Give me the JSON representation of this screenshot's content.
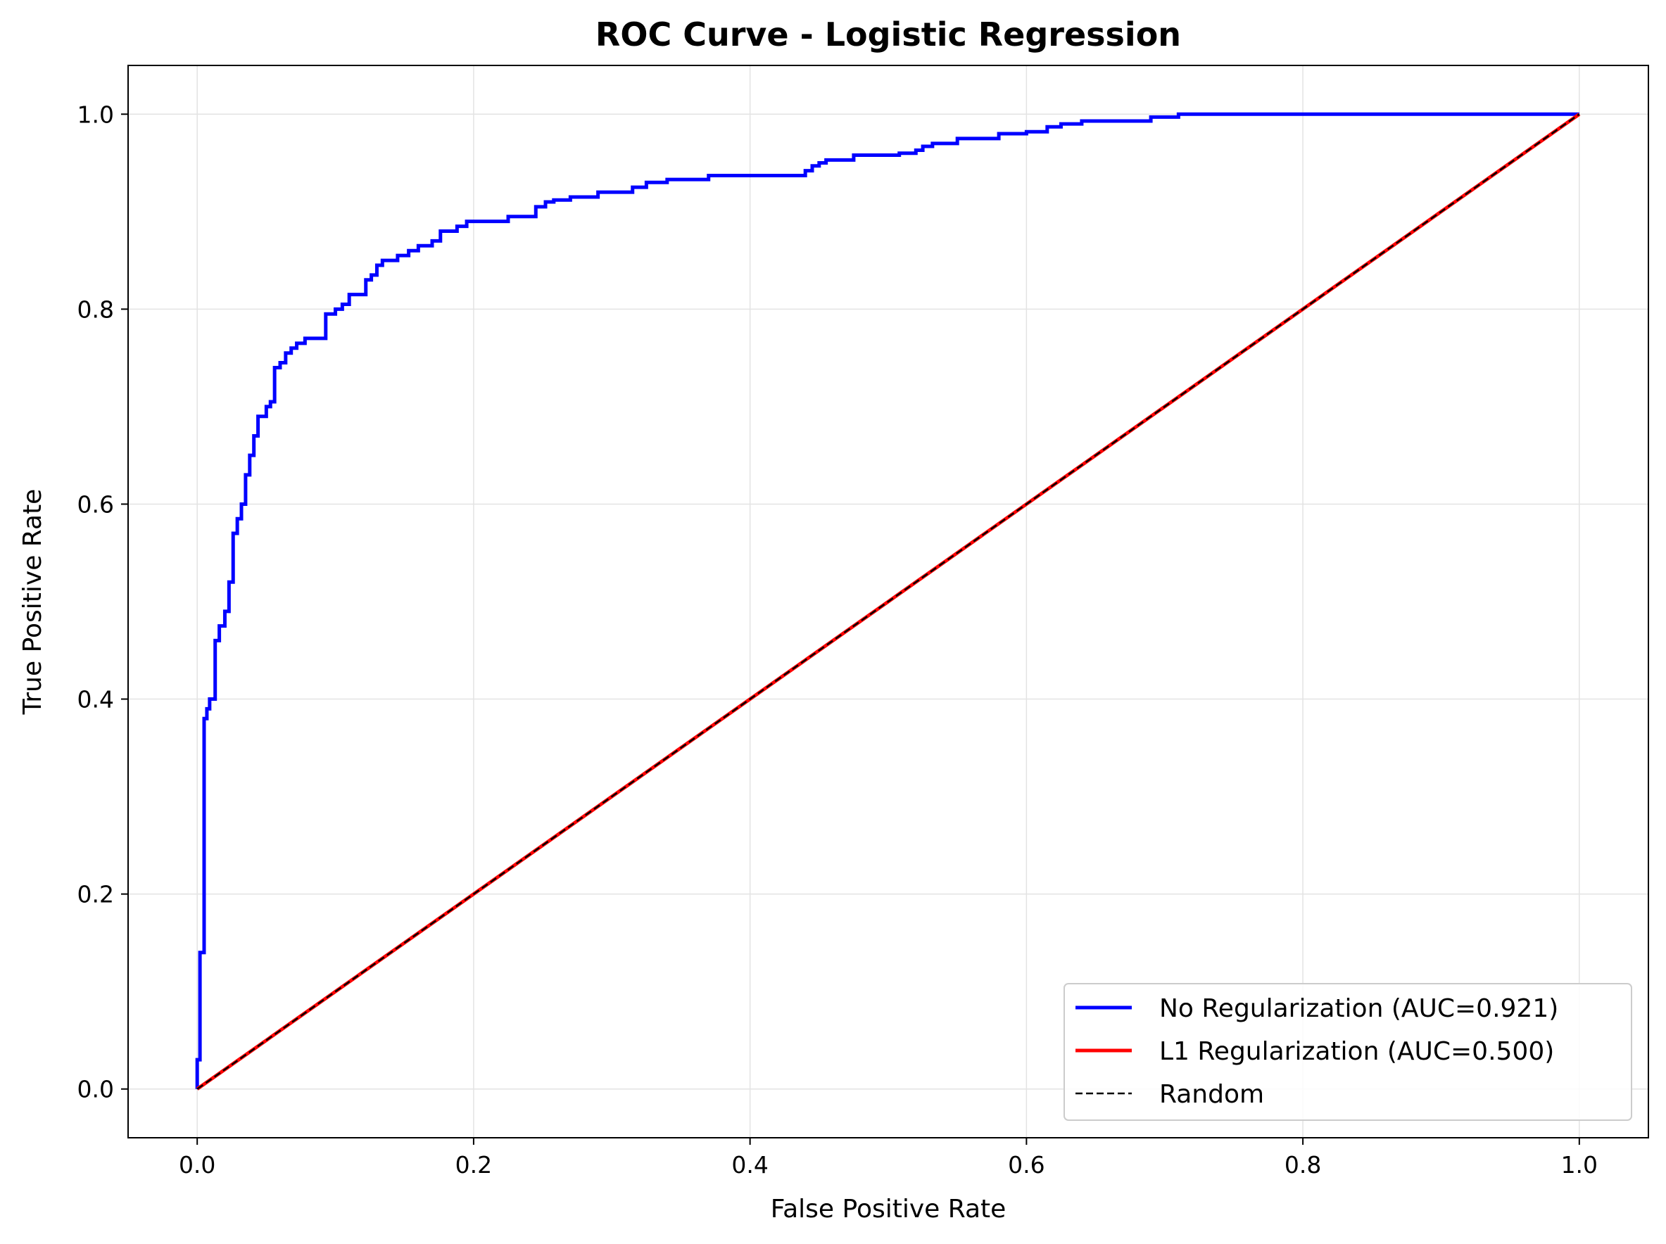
{
  "chart_data": {
    "type": "line",
    "title": "ROC Curve - Logistic Regression",
    "xlabel": "False Positive Rate",
    "ylabel": "True Positive Rate",
    "xlim": [
      -0.05,
      1.05
    ],
    "ylim": [
      -0.05,
      1.05
    ],
    "xticks": [
      0.0,
      0.2,
      0.4,
      0.6,
      0.8,
      1.0
    ],
    "yticks": [
      0.0,
      0.2,
      0.4,
      0.6,
      0.8,
      1.0
    ],
    "xtick_labels": [
      "0.0",
      "0.2",
      "0.4",
      "0.6",
      "0.8",
      "1.0"
    ],
    "ytick_labels": [
      "0.0",
      "0.2",
      "0.4",
      "0.6",
      "0.8",
      "1.0"
    ],
    "grid": true,
    "legend_position": "lower-right",
    "series": [
      {
        "name": "No Regularization (AUC=0.921)",
        "color": "#0000ff",
        "style": "solid",
        "x": [
          0.0,
          0.0,
          0.002,
          0.002,
          0.005,
          0.005,
          0.007,
          0.007,
          0.009,
          0.009,
          0.013,
          0.013,
          0.016,
          0.016,
          0.02,
          0.02,
          0.023,
          0.023,
          0.026,
          0.026,
          0.029,
          0.029,
          0.032,
          0.032,
          0.035,
          0.035,
          0.038,
          0.038,
          0.041,
          0.041,
          0.044,
          0.044,
          0.047,
          0.047,
          0.05,
          0.05,
          0.053,
          0.053,
          0.056,
          0.056,
          0.06,
          0.06,
          0.064,
          0.064,
          0.068,
          0.068,
          0.072,
          0.072,
          0.074,
          0.074,
          0.078,
          0.078,
          0.085,
          0.085,
          0.093,
          0.093,
          0.1,
          0.1,
          0.105,
          0.105,
          0.11,
          0.11,
          0.113,
          0.113,
          0.122,
          0.122,
          0.126,
          0.126,
          0.13,
          0.13,
          0.134,
          0.134,
          0.145,
          0.145,
          0.153,
          0.153,
          0.16,
          0.16,
          0.164,
          0.164,
          0.17,
          0.17,
          0.176,
          0.176,
          0.184,
          0.184,
          0.188,
          0.188,
          0.195,
          0.195,
          0.205,
          0.205,
          0.225,
          0.225,
          0.245,
          0.245,
          0.252,
          0.252,
          0.258,
          0.258,
          0.27,
          0.27,
          0.29,
          0.29,
          0.315,
          0.315,
          0.325,
          0.325,
          0.34,
          0.34,
          0.37,
          0.37,
          0.44,
          0.44,
          0.445,
          0.445,
          0.45,
          0.45,
          0.455,
          0.455,
          0.475,
          0.475,
          0.508,
          0.508,
          0.52,
          0.52,
          0.525,
          0.525,
          0.532,
          0.532,
          0.55,
          0.55,
          0.58,
          0.58,
          0.6,
          0.6,
          0.615,
          0.615,
          0.625,
          0.625,
          0.64,
          0.64,
          0.69,
          0.69,
          0.71,
          0.71,
          1.0
        ],
        "y": [
          0.0,
          0.03,
          0.03,
          0.14,
          0.14,
          0.38,
          0.38,
          0.39,
          0.39,
          0.4,
          0.4,
          0.46,
          0.46,
          0.475,
          0.475,
          0.49,
          0.49,
          0.52,
          0.52,
          0.57,
          0.57,
          0.585,
          0.585,
          0.6,
          0.6,
          0.63,
          0.63,
          0.65,
          0.65,
          0.67,
          0.67,
          0.69,
          0.69,
          0.69,
          0.69,
          0.7,
          0.7,
          0.705,
          0.705,
          0.74,
          0.74,
          0.745,
          0.745,
          0.755,
          0.755,
          0.76,
          0.76,
          0.765,
          0.765,
          0.765,
          0.765,
          0.77,
          0.77,
          0.77,
          0.77,
          0.795,
          0.795,
          0.8,
          0.8,
          0.805,
          0.805,
          0.815,
          0.815,
          0.815,
          0.815,
          0.83,
          0.83,
          0.835,
          0.835,
          0.845,
          0.845,
          0.85,
          0.85,
          0.855,
          0.855,
          0.86,
          0.86,
          0.865,
          0.865,
          0.865,
          0.865,
          0.87,
          0.87,
          0.88,
          0.88,
          0.88,
          0.88,
          0.885,
          0.885,
          0.89,
          0.89,
          0.89,
          0.89,
          0.895,
          0.895,
          0.905,
          0.905,
          0.91,
          0.91,
          0.912,
          0.912,
          0.915,
          0.915,
          0.92,
          0.92,
          0.925,
          0.925,
          0.93,
          0.93,
          0.933,
          0.933,
          0.937,
          0.937,
          0.942,
          0.942,
          0.947,
          0.947,
          0.95,
          0.95,
          0.953,
          0.953,
          0.958,
          0.958,
          0.96,
          0.96,
          0.963,
          0.963,
          0.967,
          0.967,
          0.97,
          0.97,
          0.975,
          0.975,
          0.98,
          0.98,
          0.982,
          0.982,
          0.987,
          0.987,
          0.99,
          0.99,
          0.993,
          0.993,
          0.997,
          0.997,
          1.0,
          1.0
        ]
      },
      {
        "name": "L1 Regularization (AUC=0.500)",
        "color": "#ff0000",
        "style": "solid",
        "x": [
          0.0,
          1.0
        ],
        "y": [
          0.0,
          1.0
        ]
      },
      {
        "name": "Random",
        "color": "#000000",
        "style": "dashed",
        "x": [
          0.0,
          1.0
        ],
        "y": [
          0.0,
          1.0
        ]
      }
    ]
  }
}
